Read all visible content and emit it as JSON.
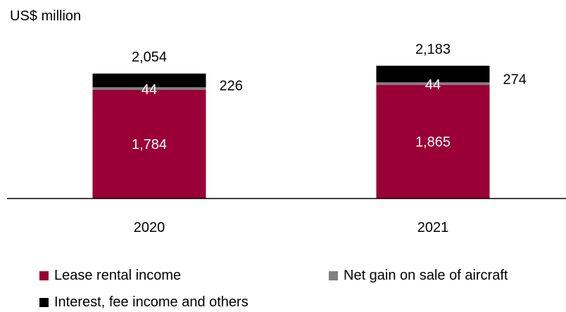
{
  "chart_data": {
    "type": "bar",
    "stacked": true,
    "unit_label": "US$ million",
    "categories": [
      "2020",
      "2021"
    ],
    "series": [
      {
        "name": "Lease rental income",
        "values": [
          1784,
          1865
        ],
        "color": "#9a0036",
        "label_color": "#ffffff"
      },
      {
        "name": "Net gain on sale of aircraft",
        "values": [
          44,
          44
        ],
        "color": "#808080",
        "label_color": "#ffffff"
      },
      {
        "name": "Interest, fee income and others",
        "values": [
          226,
          274
        ],
        "color": "#000000",
        "label_color": "#000000"
      }
    ],
    "data_labels": {
      "Lease rental income": [
        "1,784",
        "1,865"
      ],
      "Net gain on sale of aircraft": [
        "44",
        "44"
      ],
      "Interest, fee income and others": [
        "226",
        "274"
      ]
    },
    "totals": [
      2054,
      2183
    ],
    "total_labels": [
      "2,054",
      "2,183"
    ],
    "ylim": [
      0,
      2300
    ],
    "grid": false,
    "legend_position": "bottom"
  }
}
